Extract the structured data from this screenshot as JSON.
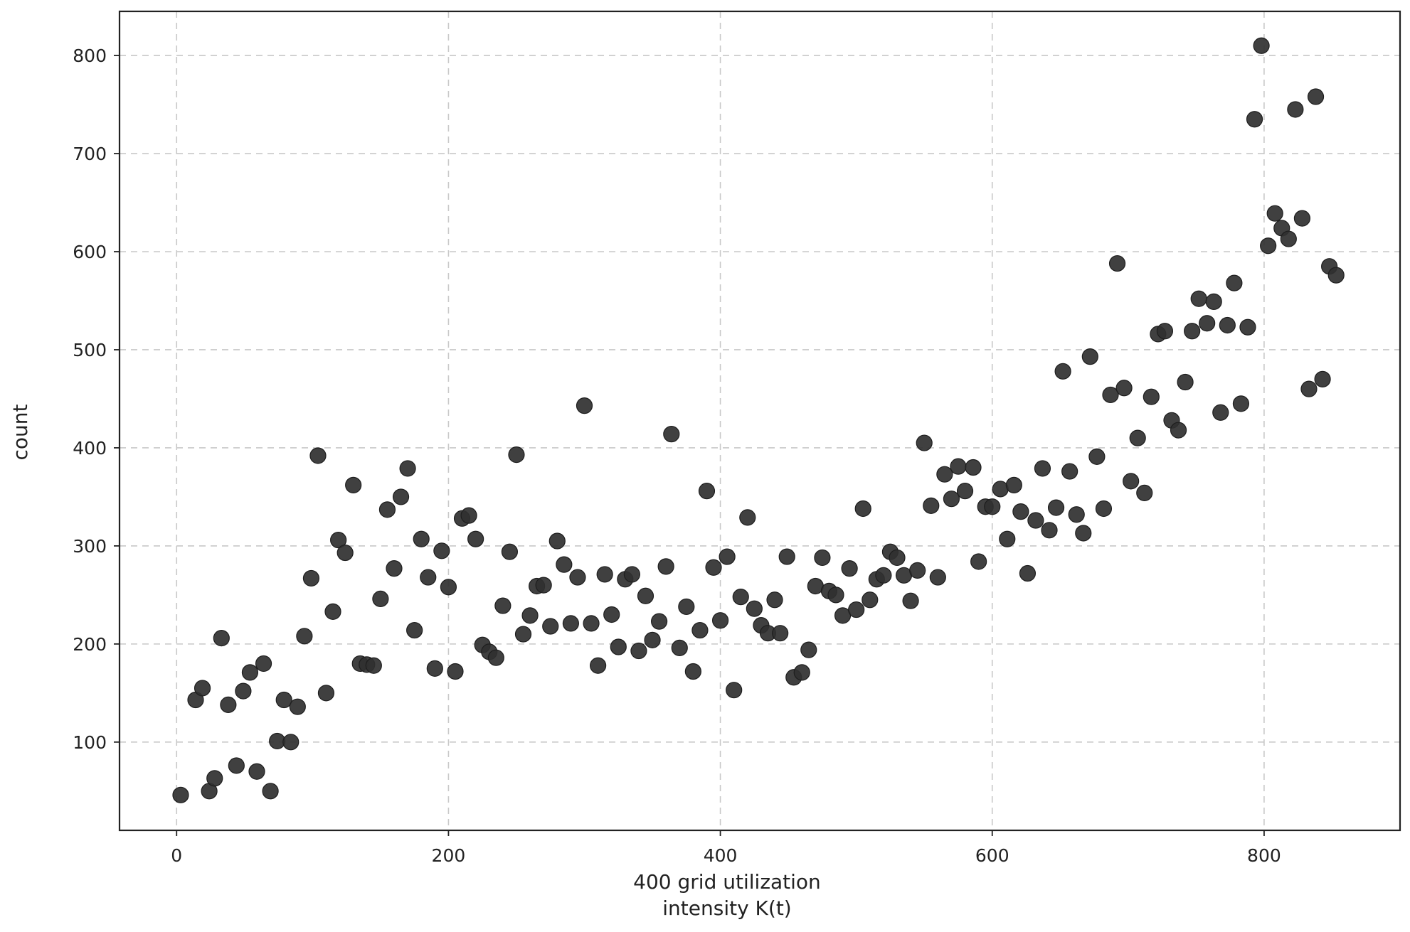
{
  "chart_data": {
    "type": "scatter",
    "title": "",
    "xlabel": [
      "400 grid utilization",
      "intensity K(t)"
    ],
    "ylabel": "count",
    "xlim": [
      -42,
      900
    ],
    "ylim": [
      10,
      845
    ],
    "xticks": [
      0,
      200,
      400,
      600,
      800
    ],
    "yticks": [
      100,
      200,
      300,
      400,
      500,
      600,
      700,
      800
    ],
    "xtick_labels": [
      "0",
      "200",
      "400",
      "600",
      "800"
    ],
    "ytick_labels": [
      "100",
      "200",
      "300",
      "400",
      "500",
      "600",
      "700",
      "800"
    ],
    "grid": true,
    "marker_color": "#303030",
    "points": [
      [
        3,
        46
      ],
      [
        14,
        143
      ],
      [
        19,
        155
      ],
      [
        24,
        50
      ],
      [
        28,
        63
      ],
      [
        33,
        206
      ],
      [
        38,
        138
      ],
      [
        44,
        76
      ],
      [
        49,
        152
      ],
      [
        54,
        171
      ],
      [
        59,
        70
      ],
      [
        64,
        180
      ],
      [
        69,
        50
      ],
      [
        74,
        101
      ],
      [
        79,
        143
      ],
      [
        84,
        100
      ],
      [
        89,
        136
      ],
      [
        94,
        208
      ],
      [
        99,
        267
      ],
      [
        104,
        392
      ],
      [
        110,
        150
      ],
      [
        115,
        233
      ],
      [
        119,
        306
      ],
      [
        124,
        293
      ],
      [
        130,
        362
      ],
      [
        135,
        180
      ],
      [
        140,
        179
      ],
      [
        145,
        178
      ],
      [
        150,
        246
      ],
      [
        155,
        337
      ],
      [
        160,
        277
      ],
      [
        165,
        350
      ],
      [
        170,
        379
      ],
      [
        175,
        214
      ],
      [
        180,
        307
      ],
      [
        185,
        268
      ],
      [
        190,
        175
      ],
      [
        195,
        295
      ],
      [
        200,
        258
      ],
      [
        205,
        172
      ],
      [
        210,
        328
      ],
      [
        215,
        331
      ],
      [
        220,
        307
      ],
      [
        225,
        199
      ],
      [
        230,
        192
      ],
      [
        235,
        186
      ],
      [
        240,
        239
      ],
      [
        245,
        294
      ],
      [
        250,
        393
      ],
      [
        255,
        210
      ],
      [
        260,
        229
      ],
      [
        265,
        259
      ],
      [
        270,
        260
      ],
      [
        275,
        218
      ],
      [
        280,
        305
      ],
      [
        285,
        281
      ],
      [
        290,
        221
      ],
      [
        295,
        268
      ],
      [
        300,
        443
      ],
      [
        305,
        221
      ],
      [
        310,
        178
      ],
      [
        315,
        271
      ],
      [
        320,
        230
      ],
      [
        325,
        197
      ],
      [
        330,
        266
      ],
      [
        335,
        271
      ],
      [
        340,
        193
      ],
      [
        345,
        249
      ],
      [
        350,
        204
      ],
      [
        355,
        223
      ],
      [
        360,
        279
      ],
      [
        364,
        414
      ],
      [
        370,
        196
      ],
      [
        375,
        238
      ],
      [
        380,
        172
      ],
      [
        385,
        214
      ],
      [
        390,
        356
      ],
      [
        395,
        278
      ],
      [
        400,
        224
      ],
      [
        405,
        289
      ],
      [
        410,
        153
      ],
      [
        415,
        248
      ],
      [
        420,
        329
      ],
      [
        425,
        236
      ],
      [
        430,
        219
      ],
      [
        435,
        211
      ],
      [
        440,
        245
      ],
      [
        444,
        211
      ],
      [
        449,
        289
      ],
      [
        454,
        166
      ],
      [
        460,
        171
      ],
      [
        465,
        194
      ],
      [
        470,
        259
      ],
      [
        475,
        288
      ],
      [
        480,
        254
      ],
      [
        485,
        250
      ],
      [
        490,
        229
      ],
      [
        495,
        277
      ],
      [
        500,
        235
      ],
      [
        505,
        338
      ],
      [
        510,
        245
      ],
      [
        515,
        266
      ],
      [
        520,
        270
      ],
      [
        525,
        294
      ],
      [
        530,
        288
      ],
      [
        535,
        270
      ],
      [
        540,
        244
      ],
      [
        545,
        275
      ],
      [
        550,
        405
      ],
      [
        555,
        341
      ],
      [
        560,
        268
      ],
      [
        565,
        373
      ],
      [
        570,
        348
      ],
      [
        575,
        381
      ],
      [
        580,
        356
      ],
      [
        586,
        380
      ],
      [
        590,
        284
      ],
      [
        595,
        340
      ],
      [
        600,
        340
      ],
      [
        606,
        358
      ],
      [
        611,
        307
      ],
      [
        616,
        362
      ],
      [
        621,
        335
      ],
      [
        626,
        272
      ],
      [
        632,
        326
      ],
      [
        637,
        379
      ],
      [
        642,
        316
      ],
      [
        647,
        339
      ],
      [
        652,
        478
      ],
      [
        657,
        376
      ],
      [
        662,
        332
      ],
      [
        667,
        313
      ],
      [
        672,
        493
      ],
      [
        677,
        391
      ],
      [
        682,
        338
      ],
      [
        687,
        454
      ],
      [
        692,
        588
      ],
      [
        697,
        461
      ],
      [
        702,
        366
      ],
      [
        707,
        410
      ],
      [
        712,
        354
      ],
      [
        717,
        452
      ],
      [
        722,
        516
      ],
      [
        727,
        519
      ],
      [
        732,
        428
      ],
      [
        737,
        418
      ],
      [
        742,
        467
      ],
      [
        747,
        519
      ],
      [
        752,
        552
      ],
      [
        758,
        527
      ],
      [
        763,
        549
      ],
      [
        768,
        436
      ],
      [
        773,
        525
      ],
      [
        778,
        568
      ],
      [
        783,
        445
      ],
      [
        788,
        523
      ],
      [
        793,
        735
      ],
      [
        798,
        810
      ],
      [
        803,
        606
      ],
      [
        808,
        639
      ],
      [
        813,
        624
      ],
      [
        818,
        613
      ],
      [
        823,
        745
      ],
      [
        828,
        634
      ],
      [
        833,
        460
      ],
      [
        838,
        758
      ],
      [
        843,
        470
      ],
      [
        848,
        585
      ],
      [
        853,
        576
      ]
    ]
  }
}
